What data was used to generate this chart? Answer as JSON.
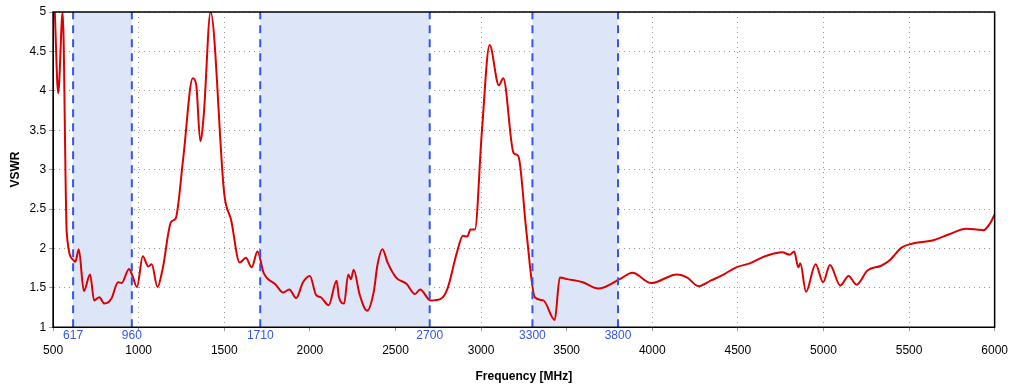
{
  "chart_data": {
    "type": "line",
    "xlabel": "Frequency [MHz]",
    "ylabel": "VSWR",
    "xlim": [
      500,
      6000
    ],
    "ylim": [
      1,
      5
    ],
    "xticks": [
      500,
      1000,
      1500,
      2000,
      2500,
      3000,
      3500,
      4000,
      4500,
      5000,
      5500,
      6000
    ],
    "yticks": [
      1,
      1.5,
      2,
      2.5,
      3,
      3.5,
      4,
      4.5,
      5
    ],
    "grid": true,
    "bands": [
      {
        "axis": "x",
        "from": 617,
        "to": 960,
        "color": "#dce6f8"
      },
      {
        "axis": "x",
        "from": 1710,
        "to": 2700,
        "color": "#dce6f8"
      },
      {
        "axis": "x",
        "from": 3300,
        "to": 3800,
        "color": "#dce6f8"
      }
    ],
    "ref_lines": [
      {
        "axis": "x",
        "value": 617,
        "label": "617",
        "color": "#3355ee",
        "line_style": "dashed"
      },
      {
        "axis": "x",
        "value": 960,
        "label": "960",
        "color": "#3355ee",
        "line_style": "dashed"
      },
      {
        "axis": "x",
        "value": 1710,
        "label": "1710",
        "color": "#3355ee",
        "line_style": "dashed"
      },
      {
        "axis": "x",
        "value": 2700,
        "label": "2700",
        "color": "#3355ee",
        "line_style": "dashed"
      },
      {
        "axis": "x",
        "value": 3300,
        "label": "3300",
        "color": "#3355ee",
        "line_style": "dashed"
      },
      {
        "axis": "x",
        "value": 3800,
        "label": "3800",
        "color": "#3355ee",
        "line_style": "dashed"
      }
    ],
    "series": [
      {
        "color": "#dd0000",
        "x": [
          510,
          530,
          556,
          580,
          620,
          630,
          650,
          680,
          716,
          740,
          770,
          800,
          840,
          880,
          900,
          944,
          964,
          990,
          1024,
          1056,
          1076,
          1110,
          1140,
          1190,
          1216,
          1260,
          1316,
          1336,
          1360,
          1380,
          1420,
          1500,
          1540,
          1590,
          1626,
          1660,
          1694,
          1730,
          1800,
          1844,
          1880,
          1920,
          1960,
          2000,
          2036,
          2064,
          2110,
          2156,
          2170,
          2200,
          2224,
          2240,
          2256,
          2290,
          2334,
          2374,
          2394,
          2424,
          2454,
          2504,
          2564,
          2614,
          2644,
          2704,
          2764,
          2804,
          2858,
          2894,
          2920,
          2938,
          2964,
          3004,
          3050,
          3104,
          3130,
          3190,
          3218,
          3264,
          3314,
          3364,
          3430,
          3460,
          3504,
          3594,
          3684,
          3810,
          3884,
          3994,
          4144,
          4204,
          4271,
          4341,
          4410,
          4490,
          4570,
          4659,
          4759,
          4803,
          4829,
          4853,
          4865,
          4898,
          4954,
          4998,
          5038,
          5098,
          5147,
          5193,
          5257,
          5337,
          5387,
          5456,
          5516,
          5636,
          5735,
          5835,
          5895,
          5934,
          5974,
          6000
        ],
        "values": [
          5,
          3.97,
          5,
          2.19,
          1.85,
          1.83,
          1.99,
          1.46,
          1.67,
          1.34,
          1.38,
          1.3,
          1.36,
          1.57,
          1.56,
          1.74,
          1.65,
          1.51,
          1.9,
          1.77,
          1.8,
          1.51,
          1.74,
          2.34,
          2.38,
          3.14,
          4.16,
          4.08,
          3.36,
          3.69,
          5,
          2.69,
          2.36,
          1.82,
          1.88,
          1.76,
          1.96,
          1.69,
          1.54,
          1.44,
          1.48,
          1.37,
          1.57,
          1.65,
          1.41,
          1.38,
          1.28,
          1.59,
          1.38,
          1.3,
          1.67,
          1.61,
          1.73,
          1.42,
          1.21,
          1.46,
          1.78,
          1.99,
          1.82,
          1.63,
          1.55,
          1.42,
          1.48,
          1.34,
          1.36,
          1.49,
          1.94,
          2.16,
          2.15,
          2.24,
          2.24,
          3.46,
          4.58,
          4.07,
          4.16,
          3.21,
          3.17,
          2.23,
          1.38,
          1.34,
          1.09,
          1.63,
          1.61,
          1.57,
          1.49,
          1.61,
          1.69,
          1.56,
          1.67,
          1.63,
          1.52,
          1.59,
          1.66,
          1.76,
          1.81,
          1.9,
          1.95,
          1.92,
          1.96,
          1.76,
          1.81,
          1.45,
          1.8,
          1.57,
          1.79,
          1.53,
          1.65,
          1.54,
          1.72,
          1.78,
          1.85,
          2.01,
          2.06,
          2.1,
          2.18,
          2.25,
          2.24,
          2.23,
          2.32,
          2.43
        ]
      }
    ]
  }
}
